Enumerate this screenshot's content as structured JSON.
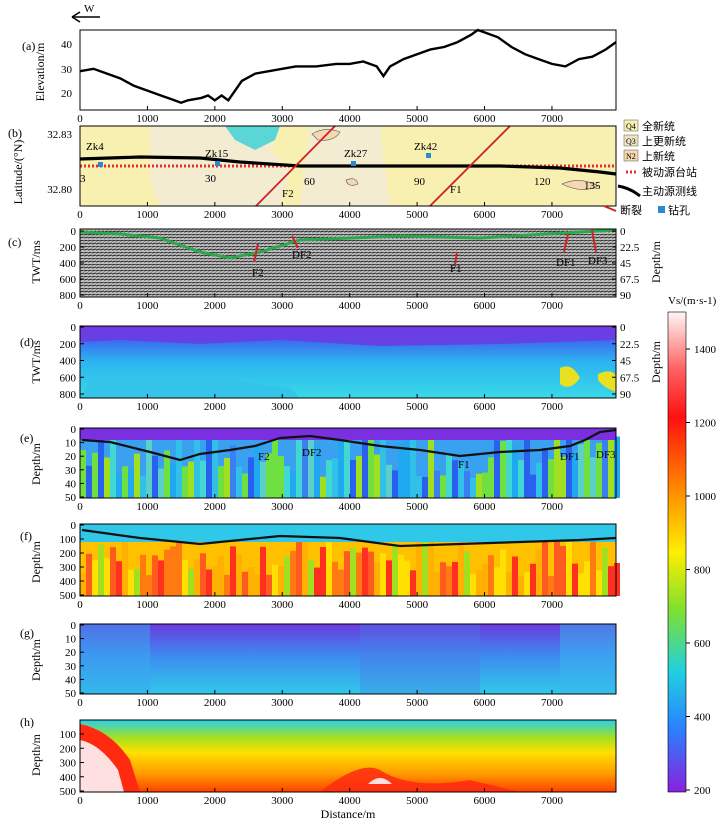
{
  "north_arrow": {
    "label": "W"
  },
  "panel_labels": [
    "(a)",
    "(b)",
    "(c)",
    "(d)",
    "(e)",
    "(f)",
    "(g)",
    "(h)"
  ],
  "x_axis": {
    "label": "Distance/m",
    "ticks": [
      "0",
      "1000",
      "2000",
      "3000",
      "4000",
      "5000",
      "6000",
      "7000"
    ]
  },
  "panel_a": {
    "ylabel": "Elevation/m",
    "yticks": [
      "20",
      "30",
      "40"
    ],
    "chart_data": {
      "type": "line",
      "x": [
        0,
        200,
        400,
        600,
        800,
        1000,
        1200,
        1400,
        1500,
        1600,
        1800,
        1900,
        2000,
        2100,
        2200,
        2300,
        2400,
        2600,
        2800,
        3000,
        3200,
        3500,
        3800,
        4000,
        4200,
        4400,
        4500,
        4600,
        4800,
        5000,
        5200,
        5400,
        5600,
        5800,
        5900,
        6000,
        6200,
        6400,
        6600,
        6800,
        7000,
        7200,
        7400,
        7600,
        7800,
        7950
      ],
      "y": [
        28,
        29,
        27,
        25,
        22,
        20,
        18,
        16,
        15,
        16,
        17,
        18,
        16,
        18,
        16,
        20,
        24,
        27,
        28,
        29,
        30,
        30,
        31,
        31,
        32,
        30,
        26,
        30,
        33,
        35,
        37,
        38,
        40,
        43,
        45,
        44,
        42,
        38,
        35,
        33,
        31,
        30,
        33,
        34,
        37,
        40
      ],
      "xlim": [
        0,
        7950
      ],
      "ylim": [
        12,
        45
      ]
    }
  },
  "panel_b": {
    "ylabel": "Latitude/(°N)",
    "yticks": [
      "32.83",
      "32.80"
    ],
    "boreholes": [
      "Zk4",
      "Zk15",
      "Zk27",
      "Zk42"
    ],
    "station_numbers": [
      "3",
      "30",
      "60",
      "90",
      "120",
      "135"
    ],
    "faults": [
      "F2",
      "F1"
    ],
    "legend": [
      {
        "symbol": "Q4",
        "label": "全新统"
      },
      {
        "symbol": "Q3",
        "label": "上更新统"
      },
      {
        "symbol": "N2",
        "label": "上新统"
      },
      {
        "symbol": "passive",
        "label": "被动源台站"
      },
      {
        "symbol": "active-line",
        "label": "主动源测线"
      },
      {
        "symbol": "fault",
        "label": "断裂"
      },
      {
        "symbol": "borehole",
        "label": "钻孔"
      }
    ],
    "colors": {
      "holocene": "#f7f0b8",
      "upper_pleistocene": "#eee5bd",
      "pliocene": "#ffe6b8",
      "cyan_patch": "#58d8d8"
    }
  },
  "panel_c": {
    "ylabel_left": "TWT/ms",
    "ylabel_right": "Depth/m",
    "yticks_left": [
      "0",
      "200",
      "400",
      "600",
      "800"
    ],
    "yticks_right": [
      "0",
      "22.5",
      "45",
      "67.5",
      "90"
    ],
    "faults": [
      "F2",
      "DF2",
      "F1",
      "DF1",
      "DF3"
    ]
  },
  "panel_d": {
    "ylabel_left": "TWT/ms",
    "ylabel_right": "Depth/m",
    "yticks_left": [
      "0",
      "200",
      "400",
      "600",
      "800"
    ],
    "yticks_right": [
      "0",
      "22.5",
      "45",
      "67.5",
      "90"
    ]
  },
  "panel_e": {
    "ylabel": "Depth/m",
    "yticks": [
      "0",
      "10",
      "20",
      "30",
      "40",
      "50"
    ],
    "faults": [
      "F2",
      "DF2",
      "F1",
      "DF1",
      "DF3"
    ]
  },
  "panel_f": {
    "ylabel": "Depth/m",
    "yticks": [
      "0",
      "100",
      "200",
      "300",
      "400",
      "500"
    ]
  },
  "panel_g": {
    "ylabel": "Depth/m",
    "yticks": [
      "0",
      "10",
      "20",
      "30",
      "40",
      "50"
    ]
  },
  "panel_h": {
    "ylabel": "Depth/m",
    "yticks": [
      "100",
      "200",
      "300",
      "400",
      "500"
    ]
  },
  "colorbar": {
    "title": "Vs/(m·s-1)",
    "ticks": [
      "1400",
      "1200",
      "1000",
      "800",
      "600",
      "400",
      "200"
    ],
    "stops": [
      "#fff8f8",
      "#ff1010",
      "#ff8800",
      "#ffee00",
      "#80e020",
      "#20d0e0",
      "#2070ff",
      "#8020e0"
    ]
  }
}
